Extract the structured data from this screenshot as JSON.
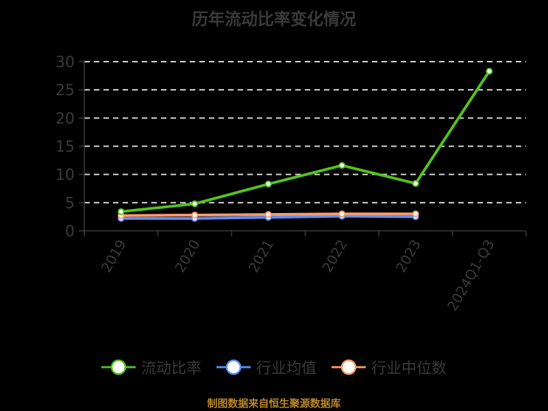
{
  "chart_data": {
    "type": "line",
    "title": "历年流动比率变化情况",
    "categories": [
      "2019",
      "2020",
      "2021",
      "2022",
      "2023",
      "2024Q1-Q3"
    ],
    "series": [
      {
        "name": "流动比率",
        "color": "#52c41a",
        "values": [
          3.4,
          4.8,
          8.3,
          11.6,
          8.4,
          28.3
        ]
      },
      {
        "name": "行业均值",
        "color": "#5b8ff9",
        "values": [
          2.2,
          2.2,
          2.4,
          2.6,
          2.5,
          null
        ]
      },
      {
        "name": "行业中位数",
        "color": "#ff9a6c",
        "values": [
          2.7,
          2.8,
          2.9,
          3.0,
          3.0,
          null
        ]
      }
    ],
    "xlabel": "",
    "ylabel": "",
    "ylim": [
      0,
      30
    ],
    "yticks": [
      0,
      5,
      10,
      15,
      20,
      25,
      30
    ],
    "grid": true,
    "legend_position": "bottom"
  },
  "footer": "制图数据来自恒生聚源数据库"
}
